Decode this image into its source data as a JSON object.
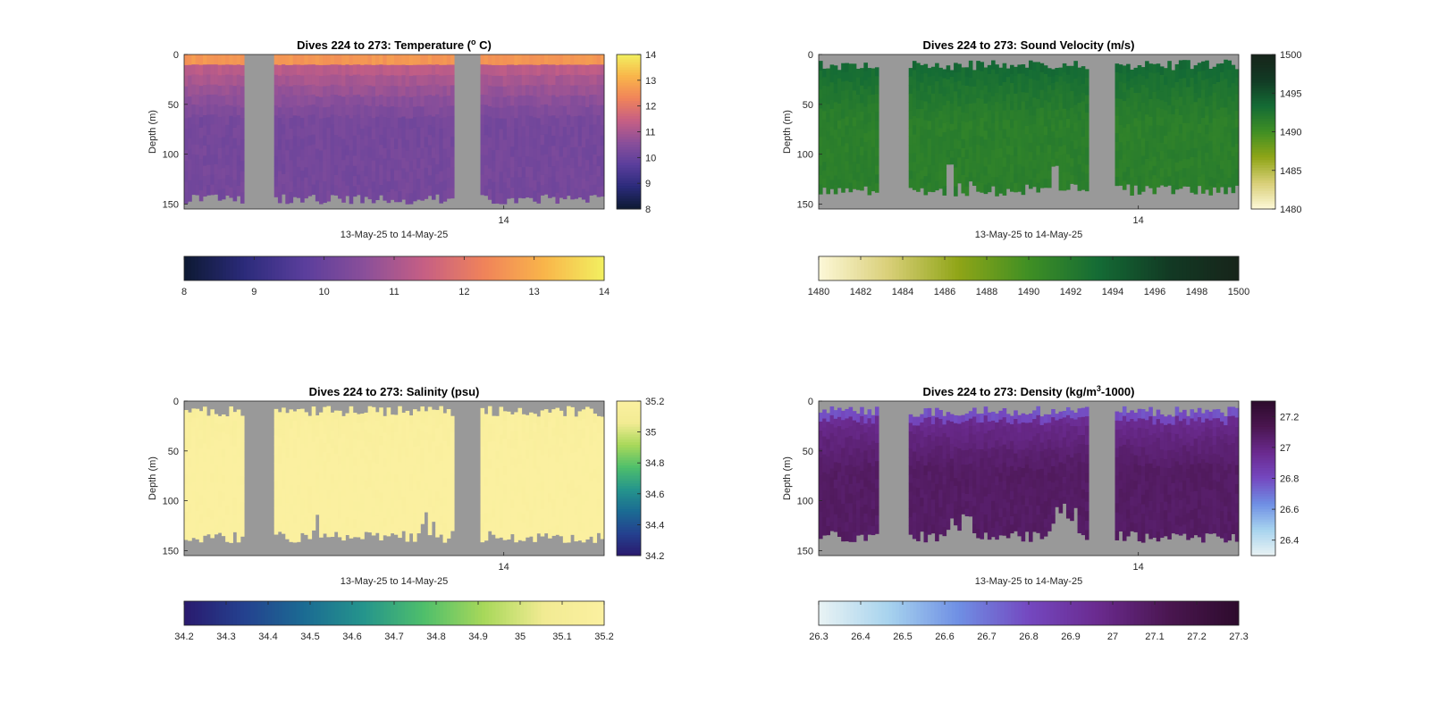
{
  "chart_data": [
    {
      "type": "heatmap",
      "title": "Dives 224 to 273: Temperature (",
      "title_sup": "o",
      "title_end": " C)",
      "xlabel": "13-May-25 to 14-May-25",
      "ylabel": "Depth (m)",
      "x_tick_labels": [
        "14"
      ],
      "y_tick_labels": [
        "0",
        "50",
        "100",
        "150"
      ],
      "ylim": [
        0,
        155
      ],
      "clim": [
        8,
        14
      ],
      "colormap": [
        "#0d1a33",
        "#2b2b7a",
        "#5a3e9c",
        "#8a4f9a",
        "#c65f84",
        "#f0835a",
        "#f9b54a",
        "#f2f060"
      ],
      "right_colorbar_ticks": [
        "14",
        "13",
        "12",
        "11",
        "10",
        "9",
        "8"
      ],
      "bottom_colorbar_ticks": [
        "8",
        "9",
        "10",
        "11",
        "12",
        "13",
        "14"
      ],
      "surface_value": 12.0,
      "deep_value": 10.2,
      "gap_color": "#999999"
    },
    {
      "type": "heatmap",
      "title": "Dives 224 to 273: Sound Velocity (m/s)",
      "xlabel": "13-May-25 to 14-May-25",
      "ylabel": "Depth (m)",
      "x_tick_labels": [
        "14"
      ],
      "y_tick_labels": [
        "0",
        "50",
        "100",
        "150"
      ],
      "ylim": [
        0,
        155
      ],
      "clim": [
        1480,
        1500
      ],
      "colormap": [
        "#fdf8d8",
        "#d9cf78",
        "#8fa517",
        "#3f8f24",
        "#146b35",
        "#123a24",
        "#17241a"
      ],
      "right_colorbar_ticks": [
        "1500",
        "1495",
        "1490",
        "1485",
        "1480"
      ],
      "bottom_colorbar_ticks": [
        "1480",
        "1482",
        "1484",
        "1486",
        "1488",
        "1490",
        "1492",
        "1494",
        "1496",
        "1498",
        "1500"
      ],
      "surface_value": 1494.5,
      "deep_value": 1491.5,
      "gap_color": "#999999"
    },
    {
      "type": "heatmap",
      "title": "Dives 224 to 273: Salinity (psu)",
      "xlabel": "13-May-25 to 14-May-25",
      "ylabel": "Depth (m)",
      "x_tick_labels": [
        "14"
      ],
      "y_tick_labels": [
        "0",
        "50",
        "100",
        "150"
      ],
      "ylim": [
        0,
        155
      ],
      "clim": [
        34.2,
        35.2
      ],
      "colormap": [
        "#2a1a6e",
        "#24418f",
        "#1b6b93",
        "#25958c",
        "#4fbf6b",
        "#a8d85a",
        "#f2eb93",
        "#fbf0a0"
      ],
      "right_colorbar_ticks": [
        "35.2",
        "35",
        "34.8",
        "34.6",
        "34.4",
        "34.2"
      ],
      "bottom_colorbar_ticks": [
        "34.2",
        "34.3",
        "34.4",
        "34.5",
        "34.6",
        "34.7",
        "34.8",
        "34.9",
        "35",
        "35.1",
        "35.2"
      ],
      "surface_value": 35.15,
      "deep_value": 35.2,
      "gap_color": "#999999"
    },
    {
      "type": "heatmap",
      "title": "Dives 224 to 273: Density (kg/m",
      "title_sup": "3",
      "title_end": "-1000)",
      "xlabel": "13-May-25 to 14-May-25",
      "ylabel": "Depth (m)",
      "x_tick_labels": [
        "14"
      ],
      "y_tick_labels": [
        "0",
        "50",
        "100",
        "150"
      ],
      "ylim": [
        0,
        155
      ],
      "clim": [
        26.3,
        27.3
      ],
      "colormap": [
        "#e9f3f4",
        "#a7d3ee",
        "#6f8fe4",
        "#7448c0",
        "#6a2a8e",
        "#4a1650",
        "#2d0b2c"
      ],
      "right_colorbar_ticks": [
        "27.2",
        "27",
        "26.8",
        "26.6",
        "26.4"
      ],
      "bottom_colorbar_ticks": [
        "26.3",
        "26.4",
        "26.5",
        "26.6",
        "26.7",
        "26.8",
        "26.9",
        "27",
        "27.1",
        "27.2",
        "27.3"
      ],
      "surface_value": 26.85,
      "deep_value": 27.08,
      "gap_color": "#999999"
    }
  ]
}
